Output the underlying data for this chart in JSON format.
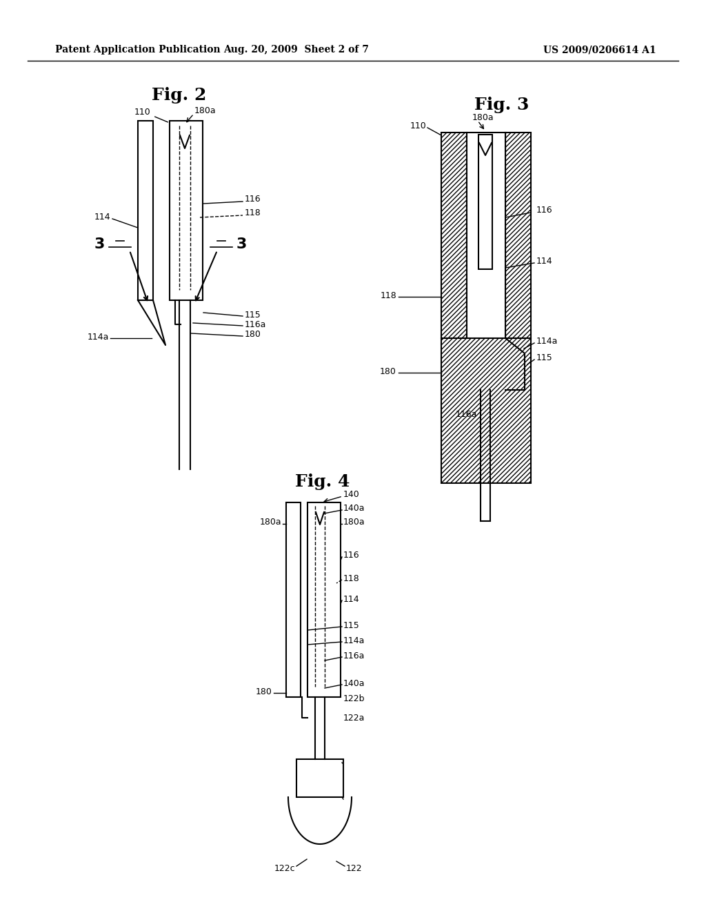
{
  "header_left": "Patent Application Publication",
  "header_center": "Aug. 20, 2009  Sheet 2 of 7",
  "header_right": "US 2009/0206614 A1",
  "fig2_title": "Fig. 2",
  "fig3_title": "Fig. 3",
  "fig4_title": "Fig. 4",
  "bg_color": "#ffffff",
  "line_color": "#000000"
}
